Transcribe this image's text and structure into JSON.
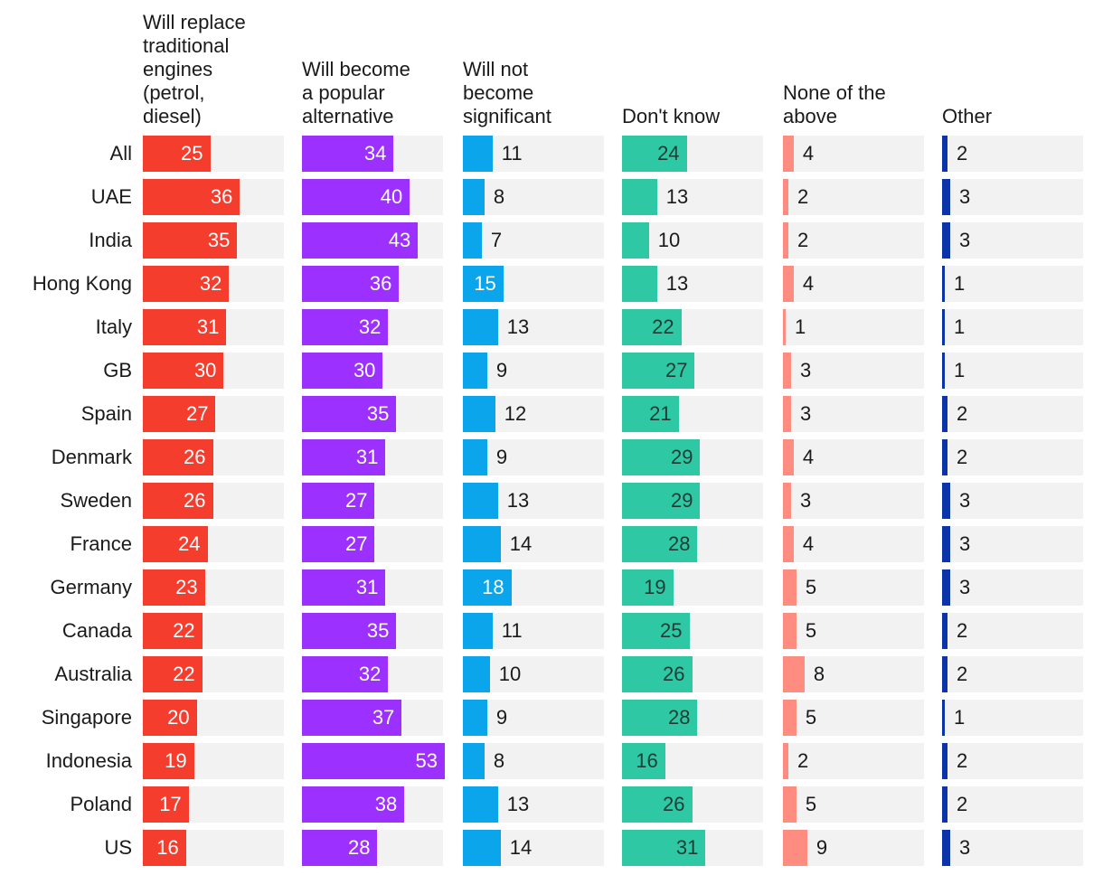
{
  "chart_data": {
    "type": "bar",
    "orientation": "horizontal",
    "layout": "small-multiples",
    "categories": [
      "All",
      "UAE",
      "India",
      "Hong Kong",
      "Italy",
      "GB",
      "Spain",
      "Denmark",
      "Sweden",
      "France",
      "Germany",
      "Canada",
      "Australia",
      "Singapore",
      "Indonesia",
      "Poland",
      "US"
    ],
    "series": [
      {
        "name": "Will replace traditional engines (petrol, diesel)",
        "color": "#f53d2d",
        "values": [
          25,
          36,
          35,
          32,
          31,
          30,
          27,
          26,
          26,
          24,
          23,
          22,
          22,
          20,
          19,
          17,
          16
        ]
      },
      {
        "name": "Will become a popular alternative",
        "color": "#9b30ff",
        "values": [
          34,
          40,
          43,
          36,
          32,
          30,
          35,
          31,
          27,
          27,
          31,
          35,
          32,
          37,
          53,
          38,
          28
        ]
      },
      {
        "name": "Will not become significant",
        "color": "#0aa5ea",
        "values": [
          11,
          8,
          7,
          15,
          13,
          9,
          12,
          9,
          13,
          14,
          18,
          11,
          10,
          9,
          8,
          13,
          14
        ]
      },
      {
        "name": "Don't know",
        "color": "#2ec9a4",
        "values": [
          24,
          13,
          10,
          13,
          22,
          27,
          21,
          29,
          29,
          28,
          19,
          25,
          26,
          28,
          16,
          26,
          31
        ]
      },
      {
        "name": "None of the above",
        "color": "#ff8c80",
        "values": [
          4,
          2,
          2,
          4,
          1,
          3,
          3,
          4,
          3,
          4,
          5,
          5,
          8,
          5,
          2,
          5,
          9
        ]
      },
      {
        "name": "Other",
        "color": "#0a34a8",
        "values": [
          2,
          3,
          3,
          1,
          1,
          1,
          2,
          2,
          3,
          3,
          3,
          2,
          2,
          1,
          2,
          2,
          3
        ]
      }
    ],
    "headers": [
      "Will replace\ntraditional\nengines\n(petrol,\ndiesel)",
      "Will become\na popular\nalternative",
      "Will not\nbecome\nsignificant",
      "Don't know",
      "None of the\nabove",
      "Other"
    ],
    "xlim": [
      0,
      53
    ],
    "grid": false,
    "legend": "none"
  }
}
